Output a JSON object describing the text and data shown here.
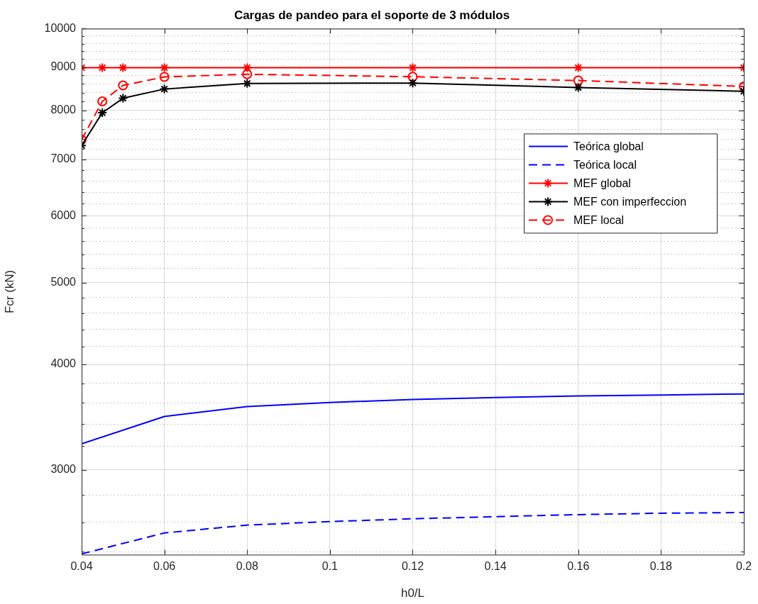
{
  "chart_data": {
    "type": "line",
    "title": "Cargas de pandeo para el soporte de 3 módulos",
    "xlabel": "h0/L",
    "ylabel": "Fcr (kN)",
    "log": "y",
    "grid": true,
    "legend": "top right",
    "xlim": [
      0.04,
      0.2
    ],
    "xticks": [
      0.04,
      0.06,
      0.08,
      0.1,
      0.12,
      0.14,
      0.16,
      0.18,
      0.2
    ],
    "ylim": [
      2380,
      10000
    ],
    "yticks": [
      {
        "value": 2400,
        "label": null
      },
      {
        "value": 2600,
        "label": null
      },
      {
        "value": 2800,
        "label": null
      },
      3000,
      {
        "value": 3200,
        "label": null
      },
      {
        "value": 3400,
        "label": null
      },
      {
        "value": 3600,
        "label": null
      },
      {
        "value": 3800,
        "label": null
      },
      4000,
      {
        "value": 4200,
        "label": null
      },
      {
        "value": 4400,
        "label": null
      },
      {
        "value": 4600,
        "label": null
      },
      {
        "value": 4800,
        "label": null
      },
      5000,
      {
        "value": 5200,
        "label": null
      },
      {
        "value": 5400,
        "label": null
      },
      {
        "value": 5600,
        "label": null
      },
      {
        "value": 5800,
        "label": null
      },
      6000,
      {
        "value": 6200,
        "label": null
      },
      {
        "value": 6400,
        "label": null
      },
      {
        "value": 6600,
        "label": null
      },
      {
        "value": 6800,
        "label": null
      },
      7000,
      {
        "value": 7200,
        "label": null
      },
      {
        "value": 7400,
        "label": null
      },
      {
        "value": 7600,
        "label": null
      },
      {
        "value": 7800,
        "label": null
      },
      8000,
      {
        "value": 8200,
        "label": null
      },
      {
        "value": 8400,
        "label": null
      },
      {
        "value": 8600,
        "label": null
      },
      {
        "value": 8800,
        "label": null
      },
      9000,
      {
        "value": 9200,
        "label": null
      },
      {
        "value": 9400,
        "label": null
      },
      {
        "value": 9600,
        "label": null
      },
      {
        "value": 9800,
        "label": null
      },
      10000
    ],
    "series": [
      {
        "name": "Teórica global",
        "color": "#0000ff",
        "marker": "none",
        "line_style": "solid",
        "x": [
          0.04,
          0.06,
          0.08,
          0.1,
          0.12,
          0.14,
          0.16,
          0.18,
          0.2
        ],
        "values": [
          3220,
          3470,
          3565,
          3605,
          3635,
          3655,
          3670,
          3680,
          3690
        ]
      },
      {
        "name": "Teórica local",
        "color": "#0000ff",
        "marker": "none",
        "line_style": "dashed",
        "x": [
          0.04,
          0.06,
          0.08,
          0.1,
          0.12,
          0.14,
          0.16,
          0.18,
          0.2
        ],
        "values": [
          2385,
          2525,
          2580,
          2605,
          2625,
          2640,
          2655,
          2665,
          2670
        ]
      },
      {
        "name": "MEF global",
        "color": "#ff0000",
        "marker": "cross",
        "line_style": "solid",
        "x": [
          0.04,
          0.045,
          0.05,
          0.06,
          0.08,
          0.12,
          0.16,
          0.2
        ],
        "values": [
          8990,
          8990,
          8990,
          8990,
          8990,
          8990,
          8990,
          8990
        ]
      },
      {
        "name": "MEF con imperfeccion",
        "color": "#000000",
        "marker": "cross",
        "line_style": "solid",
        "x": [
          0.04,
          0.045,
          0.05,
          0.06,
          0.08,
          0.12,
          0.16,
          0.2
        ],
        "values": [
          7270,
          7950,
          8270,
          8480,
          8610,
          8620,
          8515,
          8430
        ]
      },
      {
        "name": "MEF local",
        "color": "#ff0000",
        "marker": "circle",
        "line_style": "dashed",
        "x": [
          0.04,
          0.045,
          0.05,
          0.06,
          0.08,
          0.12,
          0.16,
          0.2
        ],
        "values": [
          7385,
          8200,
          8565,
          8765,
          8830,
          8770,
          8680,
          8540
        ]
      }
    ]
  }
}
